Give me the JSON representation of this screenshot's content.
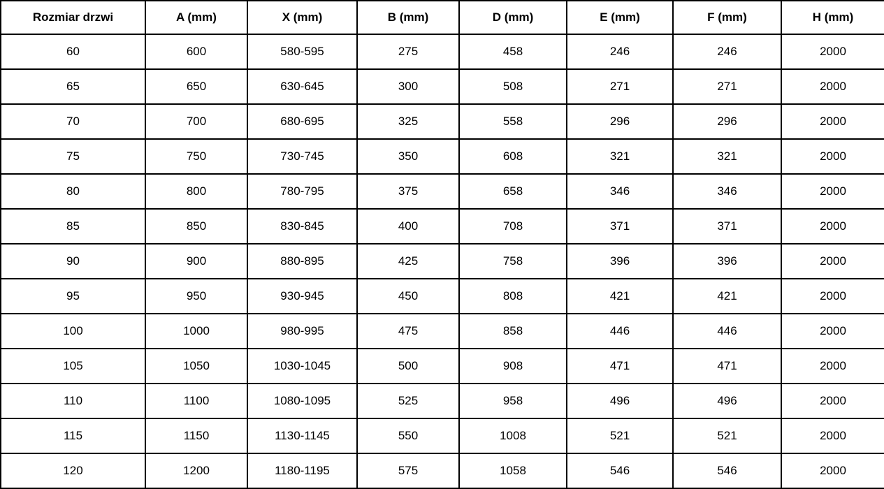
{
  "table": {
    "columns": [
      "Rozmiar drzwi",
      "A (mm)",
      "X (mm)",
      "B (mm)",
      "D (mm)",
      "E (mm)",
      "F (mm)",
      "H (mm)"
    ],
    "rows": [
      [
        "60",
        "600",
        "580-595",
        "275",
        "458",
        "246",
        "246",
        "2000"
      ],
      [
        "65",
        "650",
        "630-645",
        "300",
        "508",
        "271",
        "271",
        "2000"
      ],
      [
        "70",
        "700",
        "680-695",
        "325",
        "558",
        "296",
        "296",
        "2000"
      ],
      [
        "75",
        "750",
        "730-745",
        "350",
        "608",
        "321",
        "321",
        "2000"
      ],
      [
        "80",
        "800",
        "780-795",
        "375",
        "658",
        "346",
        "346",
        "2000"
      ],
      [
        "85",
        "850",
        "830-845",
        "400",
        "708",
        "371",
        "371",
        "2000"
      ],
      [
        "90",
        "900",
        "880-895",
        "425",
        "758",
        "396",
        "396",
        "2000"
      ],
      [
        "95",
        "950",
        "930-945",
        "450",
        "808",
        "421",
        "421",
        "2000"
      ],
      [
        "100",
        "1000",
        "980-995",
        "475",
        "858",
        "446",
        "446",
        "2000"
      ],
      [
        "105",
        "1050",
        "1030-1045",
        "500",
        "908",
        "471",
        "471",
        "2000"
      ],
      [
        "110",
        "1100",
        "1080-1095",
        "525",
        "958",
        "496",
        "496",
        "2000"
      ],
      [
        "115",
        "1150",
        "1130-1145",
        "550",
        "1008",
        "521",
        "521",
        "2000"
      ],
      [
        "120",
        "1200",
        "1180-1195",
        "575",
        "1058",
        "546",
        "546",
        "2000"
      ]
    ],
    "border_color": "#000000",
    "text_color": "#000000",
    "background_color": "#ffffff"
  }
}
